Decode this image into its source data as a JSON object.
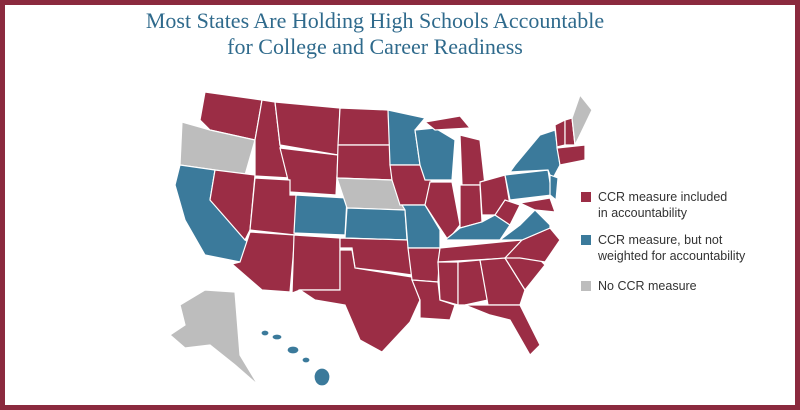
{
  "header": {
    "title": [
      "Most States Are Holding High Schools Accountable",
      "for College and Career Readiness"
    ]
  },
  "legend": [
    {
      "label": [
        "CCR measure included",
        "in accountability"
      ],
      "color": "#9b2d45"
    },
    {
      "label": [
        "CCR measure, but not",
        "weighted for accountability"
      ],
      "color": "#3b7a9b"
    },
    {
      "label": [
        "No CCR measure"
      ],
      "color": "#bdbdbd"
    }
  ]
}
